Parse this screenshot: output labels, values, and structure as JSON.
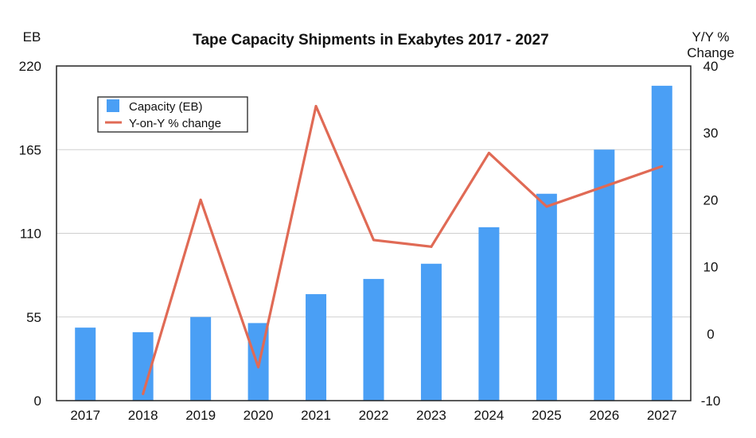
{
  "chart_data": {
    "type": "bar",
    "title": "Tape Capacity Shipments in Exabytes 2017 - 2027",
    "categories": [
      "2017",
      "2018",
      "2019",
      "2020",
      "2021",
      "2022",
      "2023",
      "2024",
      "2025",
      "2026",
      "2027"
    ],
    "ylabel": "EB",
    "ylabel_right": [
      "Y/Y %",
      "Change"
    ],
    "ylim": [
      0,
      220
    ],
    "yticks": [
      0,
      55,
      110,
      165,
      220
    ],
    "y2lim": [
      -10,
      40
    ],
    "y2ticks": [
      -10,
      0,
      10,
      20,
      30,
      40
    ],
    "grid": true,
    "legend_position": "top-left",
    "series": [
      {
        "name": "Capacity (EB)",
        "type": "bar",
        "axis": "left",
        "color": "#4a9ff5",
        "values": [
          48,
          45,
          55,
          51,
          70,
          80,
          90,
          114,
          136,
          165,
          207
        ]
      },
      {
        "name": "Y-on-Y % change",
        "type": "line",
        "axis": "right",
        "color": "#e06a55",
        "values": [
          null,
          -9,
          20,
          -5,
          34,
          14,
          13,
          27,
          19,
          22,
          25
        ]
      }
    ]
  }
}
